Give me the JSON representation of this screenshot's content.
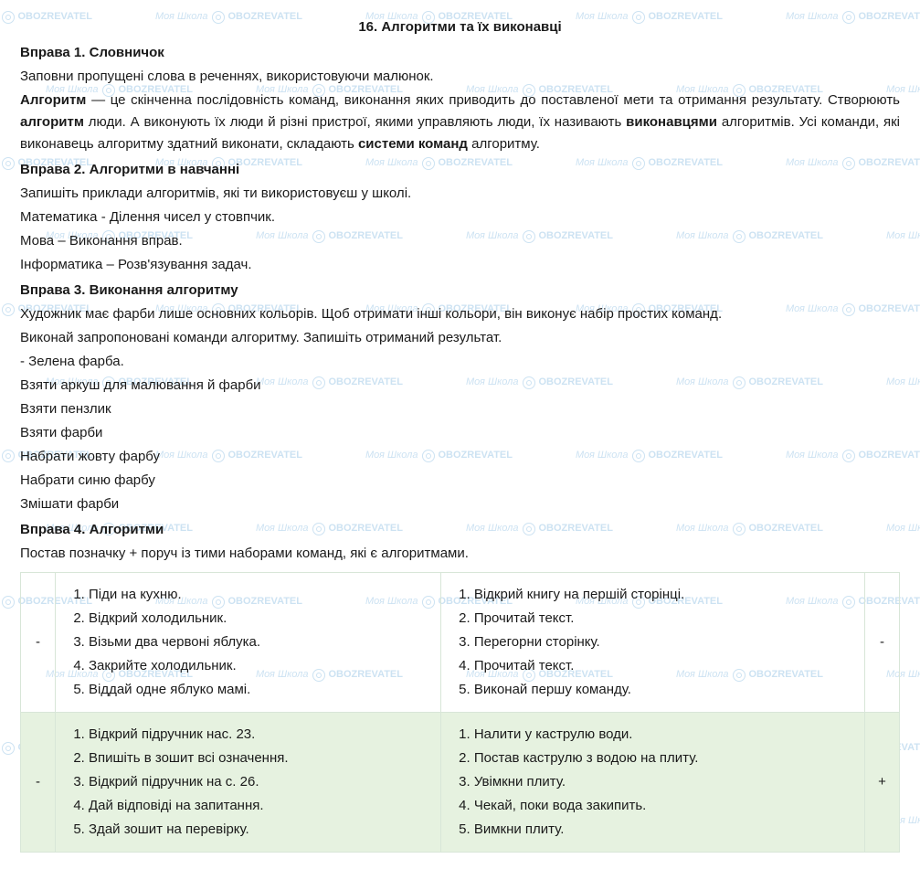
{
  "title": "16. Алгоритми та їх виконавці",
  "watermark": {
    "text1": "Моя Школа",
    "text2": "OBOZREVATEL"
  },
  "ex1": {
    "head": "Вправа 1. Словничок",
    "intro": "Заповни пропущені слова в реченнях, використовуючи малюнок.",
    "p1a": "Алгоритм",
    "p1b": " — це скінченна послідовність команд, виконання яких приводить до поставленої мети та отримання результату. Створюють ",
    "p1c": "алгоритм",
    "p1d": " люди. А виконують їх люди й різні пристрої, якими управляють люди, їх називають ",
    "p1e": "виконавцями",
    "p1f": " алгоритмів. Усі команди, які виконавець алгоритму здатний виконати, складають ",
    "p1g": "системи команд",
    "p1h": " алгоритму."
  },
  "ex2": {
    "head": "Вправа 2. Алгоритми в навчанні",
    "intro": "Запишіть приклади алгоритмів, які ти використовуєш у школі.",
    "l1": "Математика - Ділення чисел у стовпчик.",
    "l2": "Мова – Виконання вправ.",
    "l3": "Інформатика – Розв'язування задач."
  },
  "ex3": {
    "head": "Вправа 3. Виконання алгоритму",
    "p1": "Художник має фарби лише основних кольорів. Щоб отримати інші кольори, він виконує набір простих команд.",
    "p2": "Виконай запропоновані команди алгоритму. Запишіть отриманий результат.",
    "l1": "- Зелена фарба.",
    "l2": "Взяти аркуш для малювання й фарби",
    "l3": "Взяти пензлик",
    "l4": "Взяти фарби",
    "l5": "Набрати жовту фарбу",
    "l6": "Набрати синю фарбу",
    "l7": "Змішати фарби"
  },
  "ex4": {
    "head": "Вправа 4. Алгоритми",
    "intro": "Постав позначку + поруч із тими наборами команд, які є алгоритмами.",
    "table": {
      "row1": {
        "mark_left": "-",
        "left": [
          "Піди на кухню.",
          "Відкрий холодильник.",
          "Візьми два червоні яблука.",
          "Закрийте холодильник.",
          "Віддай одне яблуко мамі."
        ],
        "right": [
          "Відкрий книгу на першій сторінці.",
          "Прочитай текст.",
          "Перегорни сторінку.",
          "Прочитай текст.",
          "Виконай першу команду."
        ],
        "mark_right": "-"
      },
      "row2": {
        "mark_left": "-",
        "left": [
          "Відкрий підручник нас. 23.",
          "Впишіть в зошит всі означення.",
          "Відкрий підручник на с. 26.",
          "Дай відповіді на запитання.",
          "Здай зошит на перевірку."
        ],
        "right": [
          "Налити у каструлю води.",
          "Постав каструлю з водою на плиту.",
          "Увімкни плиту.",
          "Чекай, поки вода закипить.",
          "Вимкни плиту."
        ],
        "mark_right": "+"
      }
    },
    "highlight_bg": "#e6f2e0",
    "border_color": "#d8e6d8"
  }
}
